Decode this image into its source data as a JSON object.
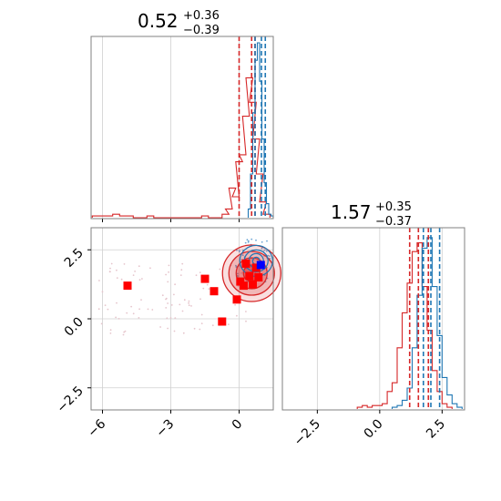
{
  "chart_data": [
    {
      "type": "histogram",
      "panel": "top-left",
      "title": {
        "value": "0.52",
        "upper": "+0.36",
        "lower": "−0.39"
      },
      "xlim": [
        -6.5,
        1.5
      ],
      "grid": true,
      "colors": {
        "red": "#d62728",
        "blue": "#1f77b4"
      },
      "red_quantiles": [
        0.0,
        0.55,
        0.7
      ],
      "blue_quantiles": [
        0.7,
        0.98,
        1.15
      ],
      "red_hist": {
        "x": [
          -6.3,
          -6.0,
          -5.7,
          -5.4,
          -5.1,
          -4.8,
          -4.5,
          -4.2,
          -3.9,
          -3.6,
          -3.3,
          -3.0,
          -2.7,
          -2.4,
          -2.1,
          -1.8,
          -1.5,
          -1.2,
          -0.9,
          -0.6,
          -0.45,
          -0.3,
          -0.15,
          0.0,
          0.15,
          0.3,
          0.45,
          0.6,
          0.75,
          0.9,
          1.05,
          1.2
        ],
        "y": [
          0.01,
          0.01,
          0.01,
          0.02,
          0.01,
          0.01,
          0.0,
          0.0,
          0.01,
          0.0,
          0.0,
          0.0,
          0.0,
          0.0,
          0.0,
          0.0,
          0.01,
          0.0,
          0.0,
          0.02,
          0.05,
          0.17,
          0.12,
          0.32,
          0.36,
          0.58,
          0.8,
          0.66,
          0.45,
          0.25,
          0.09,
          0.02
        ]
      },
      "blue_hist": {
        "x": [
          0.45,
          0.55,
          0.65,
          0.75,
          0.85,
          0.95,
          1.05,
          1.15,
          1.25,
          1.35,
          1.45
        ],
        "y": [
          0.05,
          0.25,
          0.6,
          0.9,
          1.0,
          0.78,
          0.45,
          0.2,
          0.08,
          0.02,
          0.01
        ]
      }
    },
    {
      "type": "scatter",
      "panel": "bottom-left",
      "xlim": [
        -6.5,
        1.5
      ],
      "ylim": [
        -3.3,
        3.3
      ],
      "xticks": [
        "−6",
        "−3",
        "0"
      ],
      "xtick_values": [
        -6,
        -3,
        0
      ],
      "yticks": [
        "−2.5",
        "0.0",
        "2.5"
      ],
      "ytick_values": [
        -2.5,
        0.0,
        2.5
      ],
      "grid": true,
      "red_squares": [
        [
          -4.9,
          1.2
        ],
        [
          -1.5,
          1.45
        ],
        [
          -1.1,
          1.0
        ],
        [
          -0.75,
          -0.1
        ],
        [
          -0.1,
          0.7
        ],
        [
          0.2,
          1.2
        ],
        [
          0.45,
          1.55
        ],
        [
          0.75,
          1.85
        ],
        [
          0.85,
          1.5
        ],
        [
          0.3,
          2.0
        ],
        [
          0.6,
          1.25
        ],
        [
          0.05,
          1.35
        ]
      ],
      "blue_square": [
        0.95,
        1.95
      ],
      "red_contour_center": [
        0.55,
        1.65
      ],
      "blue_contour_center": [
        0.75,
        2.1
      ]
    },
    {
      "type": "histogram",
      "panel": "bottom-right",
      "title": {
        "value": "1.57",
        "upper": "+0.35",
        "lower": "−0.37"
      },
      "xlim": [
        -3.9,
        3.4
      ],
      "xticks": [
        "−2.5",
        "0.0",
        "2.5"
      ],
      "xtick_values": [
        -2.5,
        0.0,
        2.5
      ],
      "grid": true,
      "red_quantiles": [
        1.2,
        1.55,
        1.95
      ],
      "blue_quantiles": [
        1.75,
        2.05,
        2.4
      ],
      "red_hist": {
        "x": [
          -0.8,
          -0.6,
          -0.4,
          -0.2,
          0.0,
          0.2,
          0.4,
          0.6,
          0.8,
          1.0,
          1.2,
          1.4,
          1.6,
          1.8,
          2.0,
          2.2,
          2.4,
          2.6,
          2.8
        ],
        "y": [
          0.01,
          0.02,
          0.01,
          0.02,
          0.02,
          0.03,
          0.1,
          0.15,
          0.35,
          0.55,
          0.72,
          0.9,
          0.95,
          0.7,
          0.45,
          0.22,
          0.1,
          0.03,
          0.01
        ]
      },
      "blue_hist": {
        "x": [
          0.6,
          0.8,
          1.0,
          1.2,
          1.4,
          1.6,
          1.8,
          2.0,
          2.2,
          2.4,
          2.6,
          2.8,
          3.0,
          3.2
        ],
        "y": [
          0.01,
          0.02,
          0.05,
          0.12,
          0.35,
          0.65,
          0.92,
          0.98,
          0.7,
          0.42,
          0.18,
          0.08,
          0.03,
          0.01
        ]
      }
    }
  ]
}
